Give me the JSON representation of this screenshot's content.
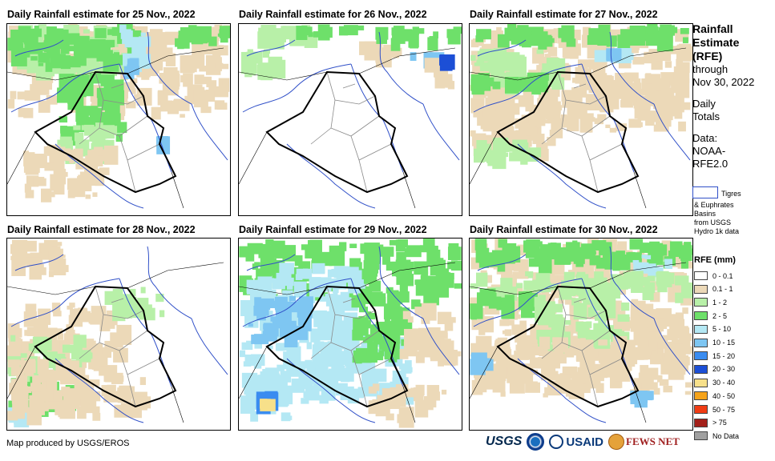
{
  "panels": [
    {
      "title": "Daily Rainfall estimate for 25 Nov., 2022",
      "pattern": "north-green"
    },
    {
      "title": "Daily Rainfall estimate for 26 Nov., 2022",
      "pattern": "dry"
    },
    {
      "title": "Daily Rainfall estimate for 27 Nov., 2022",
      "pattern": "west-green"
    },
    {
      "title": "Daily Rainfall estimate for 28 Nov., 2022",
      "pattern": "west-light"
    },
    {
      "title": "Daily Rainfall estimate for 29 Nov., 2022",
      "pattern": "heavy-blue"
    },
    {
      "title": "Daily Rainfall estimate for 30 Nov., 2022",
      "pattern": "center-green"
    }
  ],
  "legend": {
    "title_lines": [
      "Rainfall",
      "Estimate",
      "(RFE)"
    ],
    "through_lines": [
      "through",
      "Nov 30, 2022"
    ],
    "daily_lines": [
      "Daily",
      "Totals"
    ],
    "data_lines": [
      "Data:",
      "NOAA-",
      "RFE2.0"
    ],
    "basin_label": "Tigres",
    "basin_lines": [
      "& Euphrates",
      "Basins",
      "from USGS",
      "Hydro 1k data"
    ],
    "rfe_title": "RFE (mm)",
    "classes": [
      {
        "label": "0 - 0.1",
        "color": "#ffffff"
      },
      {
        "label": "0.1 - 1",
        "color": "#ecd9b8"
      },
      {
        "label": "1 - 2",
        "color": "#b8f0a8"
      },
      {
        "label": "2 - 5",
        "color": "#6ee06a"
      },
      {
        "label": "5 - 10",
        "color": "#b4e8f4"
      },
      {
        "label": "10 - 15",
        "color": "#7ec6f2"
      },
      {
        "label": "15 - 20",
        "color": "#3a8cf0"
      },
      {
        "label": "20 - 30",
        "color": "#1c4fd6"
      },
      {
        "label": "30 - 40",
        "color": "#f7e08a"
      },
      {
        "label": "40 - 50",
        "color": "#f5a31a"
      },
      {
        "label": "50 - 75",
        "color": "#f03c14"
      },
      {
        "label": "> 75",
        "color": "#a3201a"
      },
      {
        "label": "No Data",
        "color": "#a0a0a0"
      }
    ]
  },
  "credit": "Map produced by USGS/EROS",
  "logos": {
    "usgs": "USGS",
    "usaid": "USAID",
    "fews": "FEWS NET"
  },
  "map_colors": {
    "border": "#000000",
    "provinces": "#8a8a8a",
    "rivers": "#3050c8"
  }
}
